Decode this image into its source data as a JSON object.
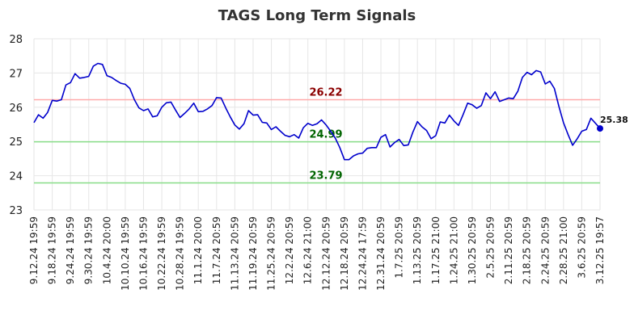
{
  "chart_data": {
    "type": "line",
    "title": "TAGS Long Term Signals",
    "xlabel": "",
    "ylabel": "",
    "ylim": [
      23,
      28
    ],
    "yticks": [
      23,
      24,
      25,
      26,
      27,
      28
    ],
    "grid": true,
    "x_tick_labels": [
      "9.12.24 19:59",
      "9.18.24 19:59",
      "9.24.24 19:59",
      "9.30.24 19:59",
      "10.4.24 20:00",
      "10.10.24 19:59",
      "10.16.24 19:59",
      "10.22.24 19:59",
      "10.28.24 19:59",
      "11.1.24 20:00",
      "11.7.24 20:59",
      "11.13.24 20:59",
      "11.19.24 20:59",
      "11.25.24 20:59",
      "12.2.24 20:59",
      "12.6.24 21:00",
      "12.12.24 20:59",
      "12.18.24 20:59",
      "12.24.24 17:59",
      "12.31.24 20:59",
      "1.7.25 20:59",
      "1.13.25 20:59",
      "1.17.25 21:00",
      "1.24.25 21:00",
      "1.30.25 20:59",
      "2.5.25 20:59",
      "2.11.25 20:59",
      "2.18.25 20:59",
      "2.24.25 20:59",
      "2.28.25 21:00",
      "3.6.25 20:59",
      "3.12.25 19:57"
    ],
    "series": [
      {
        "color": "#0000cc",
        "values": [
          25.55,
          25.78,
          25.68,
          25.85,
          26.2,
          26.18,
          26.22,
          26.65,
          26.72,
          26.98,
          26.85,
          26.87,
          26.9,
          27.2,
          27.28,
          27.25,
          26.92,
          26.87,
          26.78,
          26.7,
          26.67,
          26.55,
          26.22,
          25.98,
          25.9,
          25.95,
          25.72,
          25.75,
          26.0,
          26.13,
          26.15,
          25.92,
          25.7,
          25.82,
          25.95,
          26.12,
          25.87,
          25.88,
          25.95,
          26.05,
          26.28,
          26.27,
          25.98,
          25.72,
          25.48,
          25.36,
          25.52,
          25.9,
          25.77,
          25.78,
          25.56,
          25.54,
          25.35,
          25.43,
          25.3,
          25.18,
          25.14,
          25.2,
          25.1,
          25.4,
          25.53,
          25.47,
          25.52,
          25.63,
          25.48,
          25.3,
          25.1,
          24.82,
          24.47,
          24.47,
          24.58,
          24.64,
          24.66,
          24.8,
          24.82,
          24.82,
          25.12,
          25.2,
          24.84,
          24.97,
          25.06,
          24.88,
          24.9,
          25.27,
          25.58,
          25.43,
          25.32,
          25.08,
          25.17,
          25.57,
          25.54,
          25.77,
          25.6,
          25.47,
          25.78,
          26.12,
          26.07,
          25.97,
          26.05,
          26.42,
          26.25,
          26.45,
          26.17,
          26.22,
          26.27,
          26.25,
          26.47,
          26.87,
          27.02,
          26.95,
          27.07,
          27.03,
          26.68,
          26.76,
          26.55,
          26.02,
          25.55,
          25.2,
          24.89,
          25.08,
          25.3,
          25.35,
          25.68,
          25.53,
          25.38
        ]
      }
    ],
    "hlines": [
      {
        "value": 26.22,
        "label": "26.22",
        "color": "#ffaaaa",
        "label_color": "#8b0000"
      },
      {
        "value": 24.99,
        "label": "24.99",
        "color": "#88dd88",
        "label_color": "#006400"
      },
      {
        "value": 23.79,
        "label": "23.79",
        "color": "#88dd88",
        "label_color": "#006400"
      }
    ],
    "last_value": {
      "value": 25.38,
      "label": "25.38"
    }
  }
}
